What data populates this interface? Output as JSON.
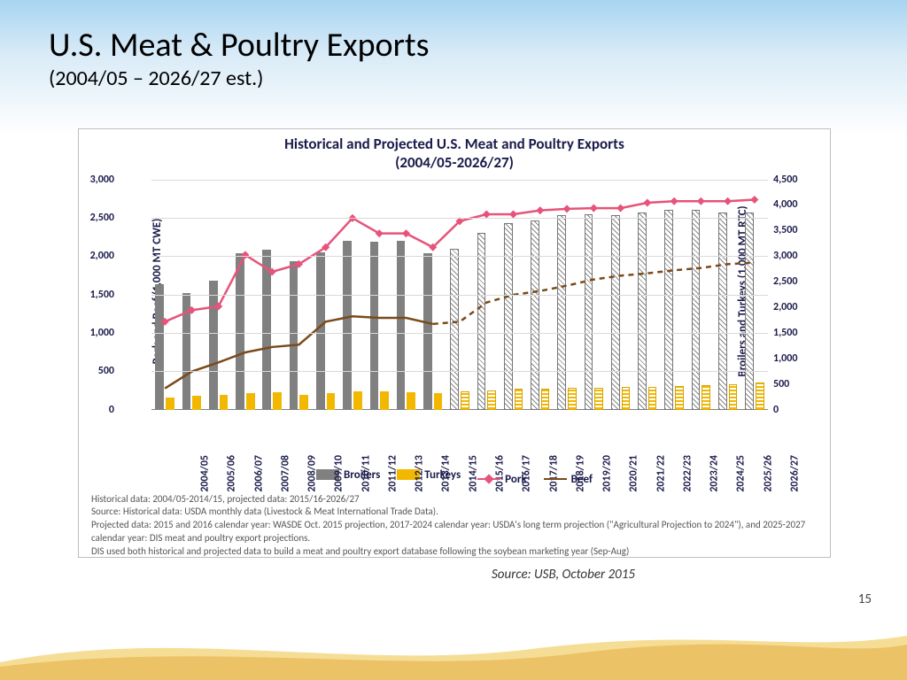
{
  "slide": {
    "title": "U.S. Meat & Poultry Exports",
    "subtitle": "(2004/05 – 2026/27 est.)",
    "source": "Source: USB, October 2015",
    "page_number": "15"
  },
  "chart": {
    "type": "bar+line dual-axis",
    "title_line1": "Historical and Projected U.S. Meat and Poultry Exports",
    "title_line2": "(2004/05-2026/27)",
    "left_axis_label": "Pork and Beef (1,000 MT CWE)",
    "right_axis_label": "Broilers and Turkeys (1,000 MT RTC)",
    "left_axis": {
      "min": 0,
      "max": 3000,
      "ticks": [
        0,
        500,
        1000,
        1500,
        2000,
        2500,
        3000
      ]
    },
    "right_axis": {
      "min": 0,
      "max": 4500,
      "ticks": [
        0,
        500,
        1000,
        1500,
        2000,
        2500,
        3000,
        3500,
        4000,
        4500
      ]
    },
    "categories": [
      "2004/05",
      "2005/06",
      "2006/07",
      "2007/08",
      "2008/09",
      "2009/10",
      "2010/11",
      "2011/12",
      "2012/13",
      "2013/14",
      "2014/15",
      "2015/16",
      "2016/17",
      "2017/18",
      "2018/19",
      "2019/20",
      "2020/21",
      "2021/22",
      "2022/23",
      "2023/24",
      "2024/25",
      "2025/26",
      "2026/27"
    ],
    "projection_start_index": 11,
    "series": {
      "broilers": {
        "label": "Broilers",
        "axis": "right",
        "color_hist": "#808080",
        "style_proj": "hatch-grey",
        "values": [
          2450,
          2280,
          2520,
          3050,
          3120,
          2900,
          3080,
          3300,
          3280,
          3300,
          3050,
          3150,
          3450,
          3650,
          3700,
          3800,
          3820,
          3800,
          3850,
          3900,
          3900,
          3850,
          3850
        ]
      },
      "turkeys": {
        "label": "Turkeys",
        "axis": "right",
        "color_hist": "#f2b800",
        "style_proj": "hatch-yellow",
        "values": [
          240,
          260,
          280,
          320,
          330,
          280,
          320,
          350,
          350,
          340,
          320,
          350,
          380,
          400,
          410,
          420,
          430,
          440,
          450,
          460,
          480,
          500,
          520
        ]
      },
      "pork": {
        "label": "Pork",
        "axis": "left",
        "color": "#e7537a",
        "marker": "diamond",
        "values": [
          1150,
          1300,
          1350,
          2020,
          1800,
          1900,
          2120,
          2500,
          2300,
          2300,
          2120,
          2460,
          2550,
          2550,
          2600,
          2620,
          2630,
          2630,
          2700,
          2720,
          2720,
          2720,
          2740
        ]
      },
      "beef": {
        "label": "Beef",
        "axis": "left",
        "color": "#7a4a1a",
        "dash_proj": true,
        "values": [
          280,
          500,
          620,
          750,
          820,
          850,
          1150,
          1220,
          1200,
          1200,
          1120,
          1150,
          1400,
          1500,
          1550,
          1620,
          1700,
          1750,
          1780,
          1820,
          1850,
          1900,
          1920
        ]
      }
    },
    "legend_order": [
      "broilers",
      "turkeys",
      "pork",
      "beef"
    ],
    "background_color": "#ffffff",
    "grid_color": "#d9d9d9",
    "tick_fontsize": 12,
    "label_fontsize": 13,
    "title_fontsize": 17,
    "bar_width_ratio": 0.32,
    "notes": [
      "Historical data: 2004/05-2014/15, projected data: 2015/16-2026/27",
      "Source: Historical data: USDA monthly data (Livestock & Meat International Trade Data).",
      "Projected data: 2015 and 2016 calendar year: WASDE Oct. 2015 projection, 2017-2024 calendar year: USDA's long term projection (\"Agricultural Projection to 2024\"), and 2025-2027 calendar year: DIS meat and poultry export projections.",
      "DIS used both historical and projected data to build a meat and poultry export database following the soybean marketing year (Sep-Aug)"
    ]
  }
}
